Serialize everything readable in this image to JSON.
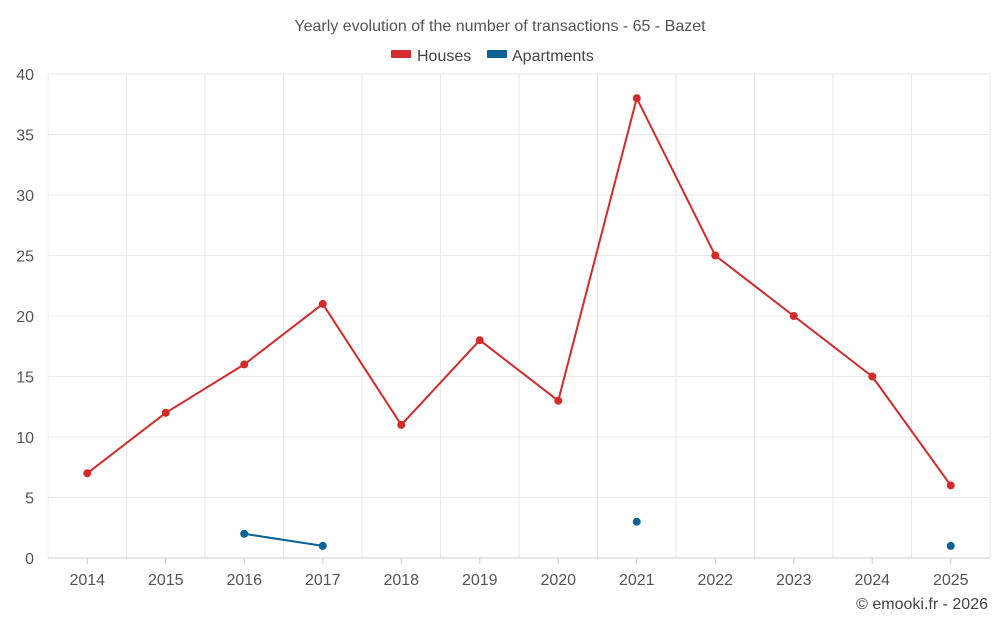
{
  "chart_data": {
    "type": "line",
    "title": "Yearly evolution of the number of transactions - 65 - Bazet",
    "categories": [
      "2014",
      "2015",
      "2016",
      "2017",
      "2018",
      "2019",
      "2020",
      "2021",
      "2022",
      "2023",
      "2024",
      "2025"
    ],
    "ylim": [
      0,
      40
    ],
    "yticks": [
      0,
      5,
      10,
      15,
      20,
      25,
      30,
      35,
      40
    ],
    "grid": true,
    "legend_position": "top-center",
    "series": [
      {
        "name": "Houses",
        "color": "#d42a2a",
        "values": [
          7,
          12,
          16,
          21,
          11,
          18,
          13,
          38,
          25,
          20,
          15,
          6
        ]
      },
      {
        "name": "Apartments",
        "color": "#0a6296",
        "values": [
          null,
          null,
          2,
          1,
          null,
          null,
          null,
          3,
          null,
          null,
          null,
          1
        ]
      }
    ]
  },
  "credit": "© emooki.fr - 2026"
}
